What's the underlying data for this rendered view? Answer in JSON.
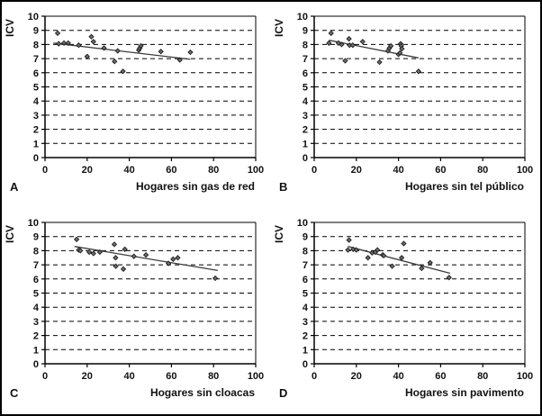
{
  "figure": {
    "background": "#ffffff",
    "border_color": "#000000",
    "style": {
      "marker_fill": "#6f6f6f",
      "marker_stroke": "#1c1c1c",
      "trend_color": "#3c3c3c",
      "axis_color": "#000000",
      "grid_color": "#000000",
      "text_color": "#111111"
    }
  },
  "chart_data": [
    {
      "type": "scatter",
      "panel_label": "A",
      "xlabel": "Hogares sin gas de red",
      "ylabel": "ICV",
      "xlim": [
        0,
        100
      ],
      "ylim": [
        0,
        10
      ],
      "xticks": [
        0,
        20,
        40,
        60,
        80,
        100
      ],
      "yticks": [
        0,
        1,
        2,
        3,
        4,
        5,
        6,
        7,
        8,
        9,
        10
      ],
      "grid": "horizontal-dashed",
      "legend": "none",
      "points": [
        [
          6,
          8.8
        ],
        [
          6.5,
          8.05
        ],
        [
          9,
          8.1
        ],
        [
          11,
          8.1
        ],
        [
          16,
          7.95
        ],
        [
          20,
          7.15
        ],
        [
          22,
          8.55
        ],
        [
          23,
          8.2
        ],
        [
          28,
          7.75
        ],
        [
          33,
          6.8
        ],
        [
          34.5,
          7.55
        ],
        [
          37,
          6.1
        ],
        [
          44.5,
          7.6
        ],
        [
          45,
          7.75
        ],
        [
          45.5,
          7.9
        ],
        [
          55,
          7.5
        ],
        [
          64,
          6.9
        ],
        [
          69,
          7.45
        ]
      ],
      "trendline": {
        "x1": 4,
        "y1": 8.1,
        "x2": 69,
        "y2": 6.95
      }
    },
    {
      "type": "scatter",
      "panel_label": "B",
      "xlabel": "Hogares sin tel público",
      "ylabel": "ICV",
      "xlim": [
        0,
        100
      ],
      "ylim": [
        0,
        10
      ],
      "xticks": [
        0,
        20,
        40,
        60,
        80,
        100
      ],
      "yticks": [
        0,
        1,
        2,
        3,
        4,
        5,
        6,
        7,
        8,
        9,
        10
      ],
      "grid": "horizontal-dashed",
      "legend": "none",
      "points": [
        [
          7,
          8.1
        ],
        [
          8,
          8.8
        ],
        [
          11.5,
          8.1
        ],
        [
          13,
          8.0
        ],
        [
          14.7,
          6.85
        ],
        [
          16.5,
          8.4
        ],
        [
          16.8,
          7.95
        ],
        [
          18.3,
          7.95
        ],
        [
          23,
          8.2
        ],
        [
          31,
          6.75
        ],
        [
          35,
          7.55
        ],
        [
          35.7,
          7.75
        ],
        [
          36.4,
          7.9
        ],
        [
          40,
          7.3
        ],
        [
          40.7,
          7.4
        ],
        [
          41,
          8.05
        ],
        [
          41.3,
          7.9
        ],
        [
          41.6,
          7.7
        ],
        [
          49.5,
          6.1
        ]
      ],
      "trendline": {
        "x1": 7,
        "y1": 8.3,
        "x2": 49.5,
        "y2": 7.05
      }
    },
    {
      "type": "scatter",
      "panel_label": "C",
      "xlabel": "Hogares sin cloacas",
      "ylabel": "ICV",
      "xlim": [
        0,
        100
      ],
      "ylim": [
        0,
        10
      ],
      "xticks": [
        0,
        20,
        40,
        60,
        80,
        100
      ],
      "yticks": [
        0,
        1,
        2,
        3,
        4,
        5,
        6,
        7,
        8,
        9,
        10
      ],
      "grid": "horizontal-dashed",
      "legend": "none",
      "points": [
        [
          15,
          8.8
        ],
        [
          16,
          8.05
        ],
        [
          16.8,
          8.0
        ],
        [
          21,
          7.9
        ],
        [
          23,
          7.8
        ],
        [
          26,
          7.9
        ],
        [
          32.9,
          8.45
        ],
        [
          33.5,
          7.5
        ],
        [
          33.6,
          6.9
        ],
        [
          37.2,
          6.7
        ],
        [
          37.9,
          8.1
        ],
        [
          42.2,
          7.6
        ],
        [
          47.9,
          7.7
        ],
        [
          58.6,
          7.1
        ],
        [
          60.8,
          7.4
        ],
        [
          63,
          7.5
        ],
        [
          80.8,
          6.05
        ]
      ],
      "trendline": {
        "x1": 14,
        "y1": 8.3,
        "x2": 82,
        "y2": 6.6
      }
    },
    {
      "type": "scatter",
      "panel_label": "D",
      "xlabel": "Hogares sin pavimento",
      "ylabel": "ICV",
      "xlim": [
        0,
        100
      ],
      "ylim": [
        0,
        10
      ],
      "xticks": [
        0,
        20,
        40,
        60,
        80,
        100
      ],
      "yticks": [
        0,
        1,
        2,
        3,
        4,
        5,
        6,
        7,
        8,
        9,
        10
      ],
      "grid": "horizontal-dashed",
      "legend": "none",
      "points": [
        [
          16,
          8.05
        ],
        [
          16.5,
          8.75
        ],
        [
          18.5,
          8.1
        ],
        [
          20,
          8.05
        ],
        [
          25.5,
          7.5
        ],
        [
          27.5,
          7.85
        ],
        [
          29,
          7.9
        ],
        [
          30,
          8.05
        ],
        [
          32.5,
          7.7
        ],
        [
          33,
          7.65
        ],
        [
          37,
          6.9
        ],
        [
          41.5,
          7.5
        ],
        [
          42.5,
          8.5
        ],
        [
          51,
          6.75
        ],
        [
          55,
          7.15
        ],
        [
          64,
          6.1
        ]
      ],
      "trendline": {
        "x1": 16,
        "y1": 8.3,
        "x2": 64.5,
        "y2": 6.4
      }
    }
  ]
}
